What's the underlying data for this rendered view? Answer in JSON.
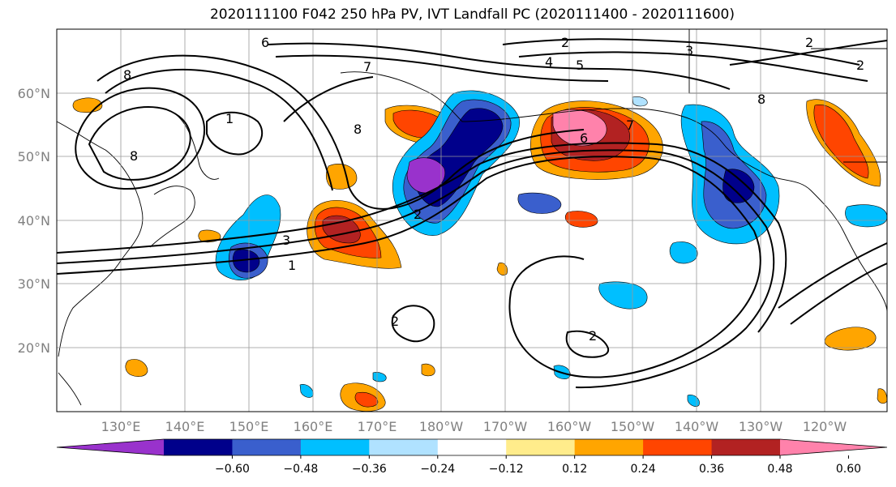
{
  "title": "2020111100 F042 250 hPa PV, IVT Landfall PC (2020111400 - 2020111600)",
  "map": {
    "lon_labels": [
      "130°E",
      "140°E",
      "150°E",
      "160°E",
      "170°E",
      "180°W",
      "170°W",
      "160°W",
      "150°W",
      "140°W",
      "130°W",
      "120°W"
    ],
    "lat_labels": [
      "60°N",
      "50°N",
      "40°N",
      "30°N",
      "20°N"
    ],
    "contour_labels": [
      "6",
      "8",
      "7",
      "2",
      "4",
      "5",
      "3",
      "2",
      "1",
      "6",
      "7",
      "8",
      "3",
      "1",
      "2",
      "2",
      "2",
      "8",
      "8",
      "2"
    ]
  },
  "colorbar": {
    "ticks": [
      "−0.60",
      "−0.48",
      "−0.36",
      "−0.24",
      "−0.12",
      "0.12",
      "0.24",
      "0.36",
      "0.48",
      "0.60"
    ],
    "colors": [
      "#9932cc",
      "#00008b",
      "#3a5fcd",
      "#00bfff",
      "#b0e2ff",
      "#ffffff",
      "#ffec8b",
      "#ffa500",
      "#ff4500",
      "#b22222",
      "#ff82ab"
    ]
  }
}
